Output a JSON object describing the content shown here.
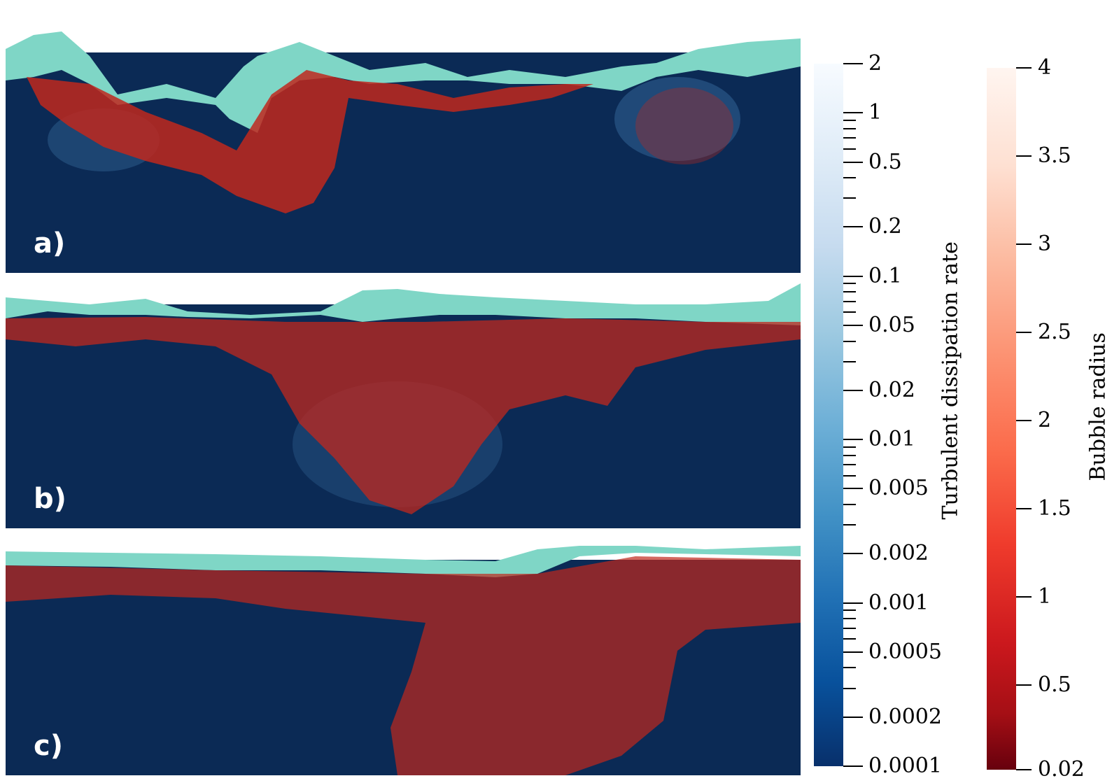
{
  "panels": [
    {
      "label": "a)"
    },
    {
      "label": "b)"
    },
    {
      "label": "c)"
    }
  ],
  "colorbars": {
    "dissipation": {
      "title": "Turbulent dissipation rate",
      "scale": "log",
      "range": [
        0.0001,
        2
      ],
      "labels": [
        "2",
        "1",
        "0.5",
        "0.2",
        "0.1",
        "0.05",
        "0.02",
        "0.01",
        "0.005",
        "0.002",
        "0.001",
        "0.0005",
        "0.0002",
        "0.0001"
      ],
      "colormap": "Blues"
    },
    "radius": {
      "title": "Bubble radius",
      "scale": "linear",
      "range": [
        0.02,
        4
      ],
      "labels": [
        "4",
        "3.5",
        "3",
        "2.5",
        "2",
        "1.5",
        "1",
        "0.5",
        "0.02"
      ],
      "colormap": "Reds"
    }
  },
  "colors": {
    "water": "#0b2a55",
    "surface": "#7fd6c6",
    "bubbles": "#c0281d"
  }
}
